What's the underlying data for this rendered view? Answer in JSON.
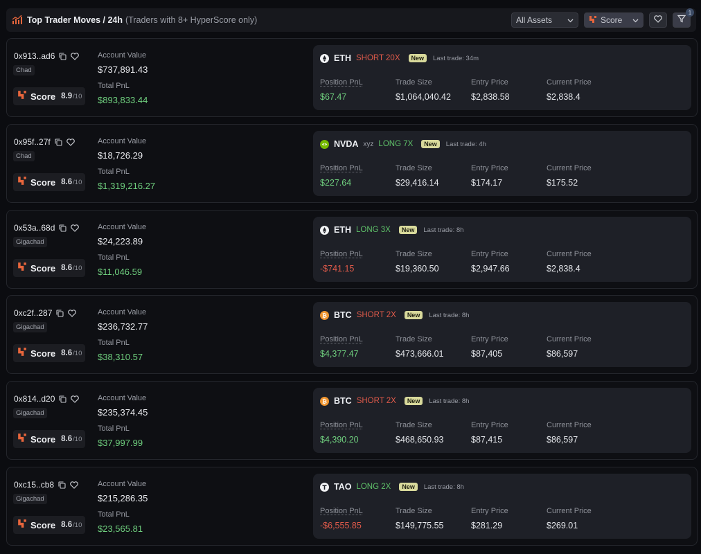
{
  "header": {
    "title": "Top Trader Moves / 24h",
    "subtitle": "(Traders with 8+ HyperScore only)",
    "assets_select": "All Assets",
    "score_select": "Score",
    "filter_badge": "1"
  },
  "labels": {
    "account_value": "Account Value",
    "total_pnl": "Total PnL",
    "score": "Score",
    "score_denominator": "/10",
    "position_pnl": "Position PnL",
    "trade_size": "Trade Size",
    "entry_price": "Entry Price",
    "current_price": "Current Price",
    "new": "New"
  },
  "traders": [
    {
      "address": "0x913..ad6",
      "tag": "Chad",
      "score": "8.9",
      "account_value": "$737,891.43",
      "total_pnl": "$893,833.44",
      "asset": "ETH",
      "asset_sub": "",
      "icon": "eth-icon",
      "side": "SHORT 20X",
      "side_type": "short",
      "last_trade": "Last trade: 34m",
      "position_pnl": "$67.47",
      "pnl_sign": "pos",
      "trade_size": "$1,064,040.42",
      "entry_price": "$2,838.58",
      "current_price": "$2,838.4"
    },
    {
      "address": "0x95f..27f",
      "tag": "Chad",
      "score": "8.6",
      "account_value": "$18,726.29",
      "total_pnl": "$1,319,216.27",
      "asset": "NVDA",
      "asset_sub": "xyz",
      "icon": "nvidia-icon",
      "side": "LONG 7X",
      "side_type": "long",
      "last_trade": "Last trade: 4h",
      "position_pnl": "$227.64",
      "pnl_sign": "pos",
      "trade_size": "$29,416.14",
      "entry_price": "$174.17",
      "current_price": "$175.52"
    },
    {
      "address": "0x53a..68d",
      "tag": "Gigachad",
      "score": "8.6",
      "account_value": "$24,223.89",
      "total_pnl": "$11,046.59",
      "asset": "ETH",
      "asset_sub": "",
      "icon": "eth-icon",
      "side": "LONG 3X",
      "side_type": "long",
      "last_trade": "Last trade: 8h",
      "position_pnl": "-$741.15",
      "pnl_sign": "neg",
      "trade_size": "$19,360.50",
      "entry_price": "$2,947.66",
      "current_price": "$2,838.4"
    },
    {
      "address": "0xc2f..287",
      "tag": "Gigachad",
      "score": "8.6",
      "account_value": "$236,732.77",
      "total_pnl": "$38,310.57",
      "asset": "BTC",
      "asset_sub": "",
      "icon": "btc-icon",
      "side": "SHORT 2X",
      "side_type": "short",
      "last_trade": "Last trade: 8h",
      "position_pnl": "$4,377.47",
      "pnl_sign": "pos",
      "trade_size": "$473,666.01",
      "entry_price": "$87,405",
      "current_price": "$86,597"
    },
    {
      "address": "0x814..d20",
      "tag": "Gigachad",
      "score": "8.6",
      "account_value": "$235,374.45",
      "total_pnl": "$37,997.99",
      "asset": "BTC",
      "asset_sub": "",
      "icon": "btc-icon",
      "side": "SHORT 2X",
      "side_type": "short",
      "last_trade": "Last trade: 8h",
      "position_pnl": "$4,390.20",
      "pnl_sign": "pos",
      "trade_size": "$468,650.93",
      "entry_price": "$87,415",
      "current_price": "$86,597"
    },
    {
      "address": "0xc15..cb8",
      "tag": "Gigachad",
      "score": "8.6",
      "account_value": "$215,286.35",
      "total_pnl": "$23,565.81",
      "asset": "TAO",
      "asset_sub": "",
      "icon": "tao-icon",
      "side": "LONG 2X",
      "side_type": "long",
      "last_trade": "Last trade: 8h",
      "position_pnl": "-$6,555.85",
      "pnl_sign": "neg",
      "trade_size": "$149,775.55",
      "entry_price": "$281.29",
      "current_price": "$269.01"
    }
  ],
  "colors": {
    "short": "#e05a4a",
    "long": "#5fc169",
    "positive": "#6fcf7e",
    "accent": "#e8663c"
  }
}
